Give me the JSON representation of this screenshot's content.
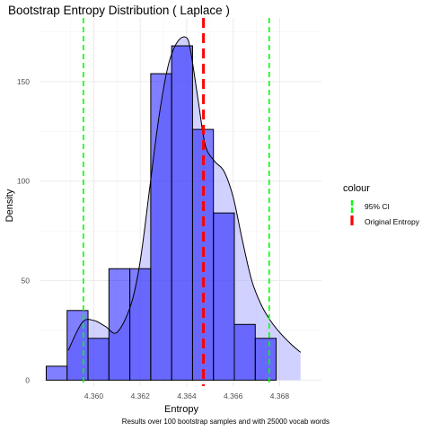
{
  "chart_data": {
    "type": "bar",
    "title": "Bootstrap Entropy Distribution ( Laplace )",
    "xlabel": "Entropy",
    "ylabel": "Density",
    "caption": "Results over 100 bootstrap samples and with 25000 vocab words",
    "xlim": [
      4.3577,
      4.3698
    ],
    "ylim": [
      -3,
      182
    ],
    "x_ticks": [
      4.36,
      4.362,
      4.364,
      4.366,
      4.368
    ],
    "x_tick_labels": [
      "4.360",
      "4.362",
      "4.364",
      "4.366",
      "4.368"
    ],
    "y_ticks": [
      0,
      50,
      100,
      150
    ],
    "y_tick_labels": [
      "0",
      "50",
      "100",
      "150"
    ],
    "grid": true,
    "bin_width": 0.0009,
    "bins": [
      {
        "x_center": 4.3584,
        "value": 7
      },
      {
        "x_center": 4.3593,
        "value": 35
      },
      {
        "x_center": 4.3602,
        "value": 21
      },
      {
        "x_center": 4.3611,
        "value": 56
      },
      {
        "x_center": 4.362,
        "value": 56
      },
      {
        "x_center": 4.3629,
        "value": 154
      },
      {
        "x_center": 4.3638,
        "value": 168
      },
      {
        "x_center": 4.3647,
        "value": 126
      },
      {
        "x_center": 4.3656,
        "value": 84
      },
      {
        "x_center": 4.3665,
        "value": 28
      },
      {
        "x_center": 4.3674,
        "value": 21
      }
    ],
    "density_curve": {
      "x": [
        4.3589,
        4.3595,
        4.36,
        4.3605,
        4.361,
        4.3616,
        4.362,
        4.3624,
        4.3628,
        4.3632,
        4.3636,
        4.364,
        4.3642,
        4.3645,
        4.3648,
        4.3652,
        4.3656,
        4.366,
        4.3664,
        4.3668,
        4.3672,
        4.3676,
        4.368,
        4.3685,
        4.3689
      ],
      "y": [
        15,
        29,
        30,
        27,
        24,
        38,
        60,
        96,
        132,
        158,
        170,
        172,
        163,
        140,
        118,
        110,
        105,
        92,
        70,
        50,
        38,
        30,
        24,
        18,
        14
      ]
    },
    "vlines": [
      {
        "name": "95% CI",
        "x": 4.35955,
        "color": "#00ff00",
        "style": "dashed"
      },
      {
        "name": "95% CI",
        "x": 4.36755,
        "color": "#00ff00",
        "style": "dashed"
      },
      {
        "name": "Original Entropy",
        "x": 4.36472,
        "color": "#ff0000",
        "style": "dashed"
      }
    ],
    "legend": {
      "title": "colour",
      "placement": "right",
      "entries": [
        {
          "label": "95% CI",
          "color": "#00ff00"
        },
        {
          "label": "Original Entropy",
          "color": "#ff0000"
        }
      ]
    },
    "colors": {
      "bar_fill": "#0000ff",
      "bar_fill_opacity": 0.5,
      "bar_stroke": "#000000",
      "density_fill": "#b3b3ff",
      "density_fill_opacity": 0.6,
      "density_stroke": "#000000",
      "grid": "#ebebeb"
    }
  }
}
